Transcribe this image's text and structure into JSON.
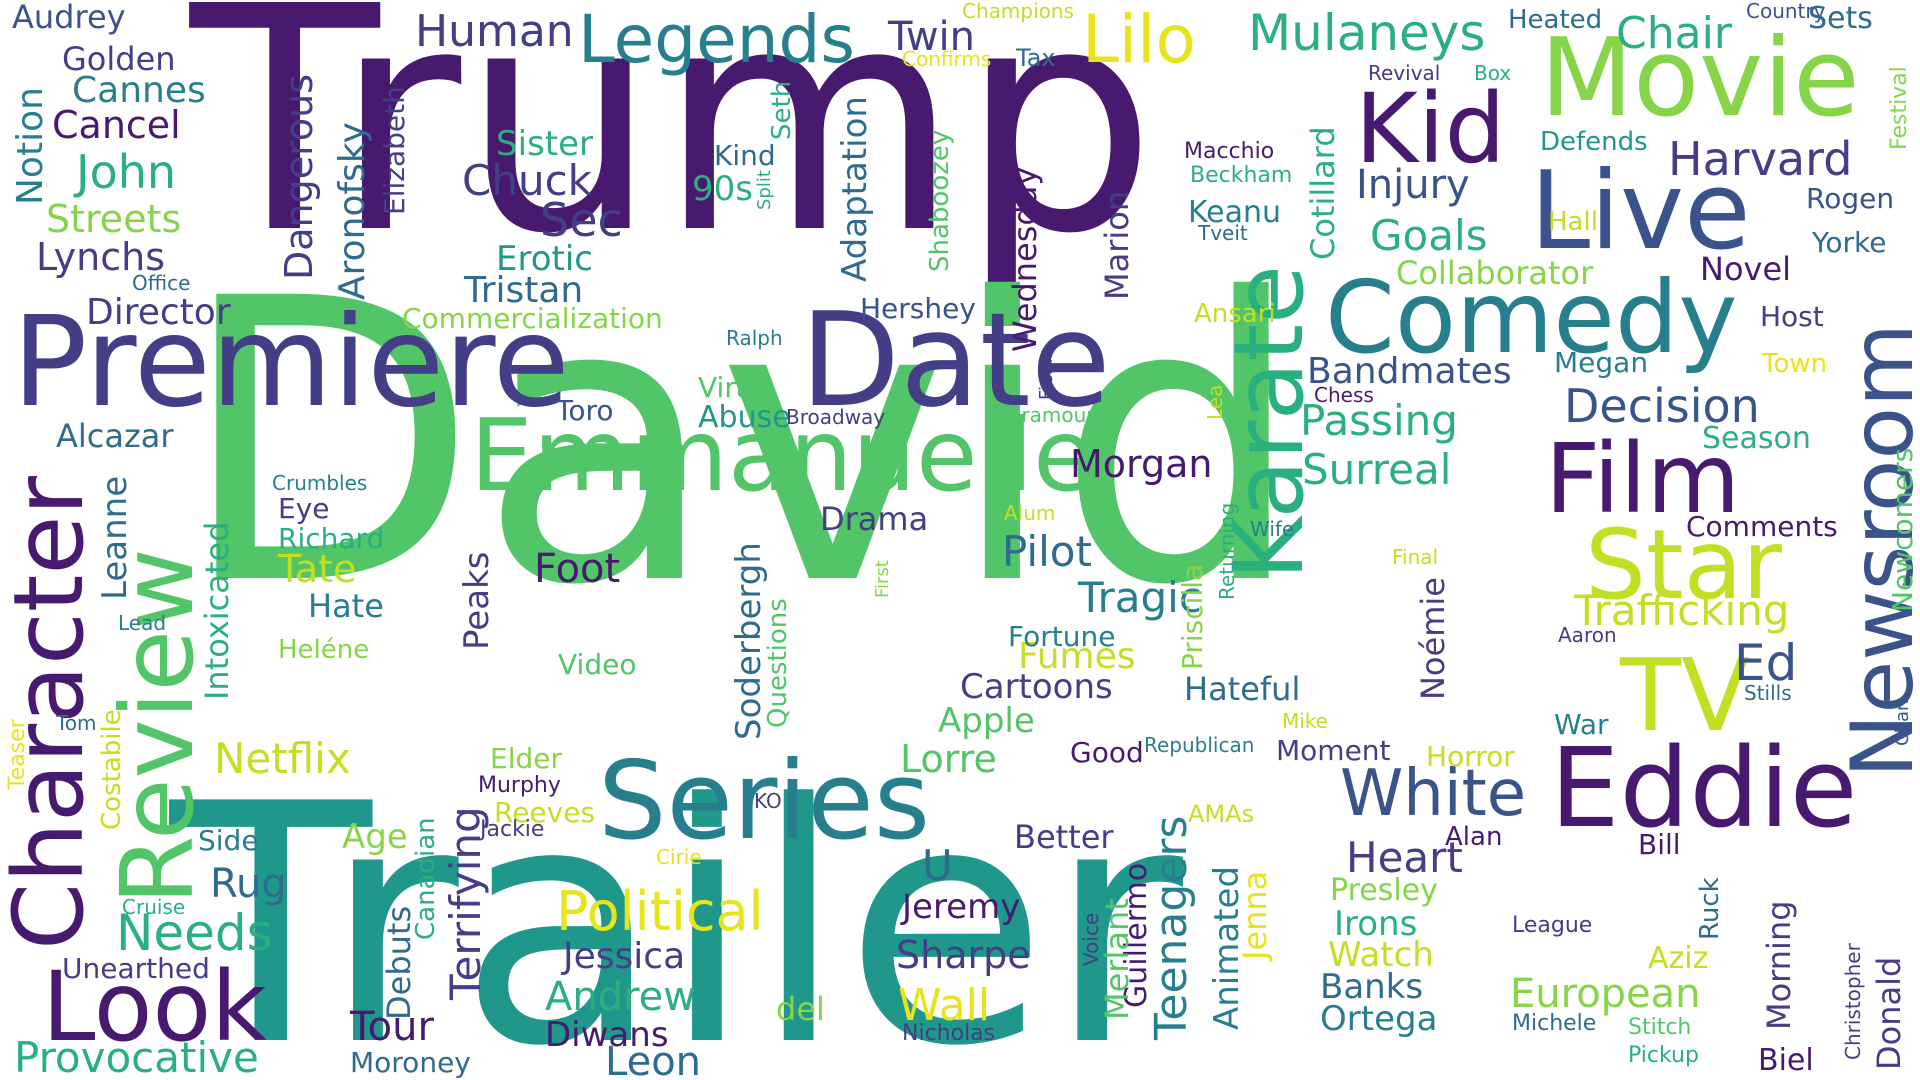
{
  "palette": {
    "dark_purple": "#471a6f",
    "indigo": "#433e85",
    "slate_blue": "#3a538b",
    "steel_blue": "#2f6b8e",
    "teal_blue": "#277f8e",
    "teal": "#1f978b",
    "green_teal": "#2ab07f",
    "green": "#52c569",
    "light_green": "#86d549",
    "yellow_green": "#c2df23",
    "yellow": "#e7e419"
  },
  "words": [
    {
      "text": "Trump",
      "color": "#471a6f"
    },
    {
      "text": "David",
      "color": "#52c569"
    },
    {
      "text": "Trailer",
      "color": "#1f978b"
    },
    {
      "text": "Premiere",
      "color": "#433e85"
    },
    {
      "text": "Date",
      "color": "#433e85"
    },
    {
      "text": "Comedy",
      "color": "#277f8e"
    },
    {
      "text": "Movie",
      "color": "#86d549"
    },
    {
      "text": "Live",
      "color": "#3a538b"
    },
    {
      "text": "Kid",
      "color": "#471a6f"
    },
    {
      "text": "Karate",
      "color": "#2ab07f"
    },
    {
      "text": "Emmanuelle",
      "color": "#52c569"
    },
    {
      "text": "Film",
      "color": "#471a6f"
    },
    {
      "text": "Star",
      "color": "#c2df23"
    },
    {
      "text": "TV",
      "color": "#c2df23"
    },
    {
      "text": "Newsroom",
      "color": "#3a538b"
    },
    {
      "text": "Eddie",
      "color": "#471a6f"
    },
    {
      "text": "Series",
      "color": "#277f8e"
    },
    {
      "text": "Review",
      "color": "#52c569"
    },
    {
      "text": "Character",
      "color": "#471a6f"
    },
    {
      "text": "Look",
      "color": "#471a6f"
    },
    {
      "text": "Legends",
      "color": "#277f8e"
    },
    {
      "text": "Lilo",
      "color": "#e7e419"
    },
    {
      "text": "Mulaneys",
      "color": "#2ab07f"
    },
    {
      "text": "Chair",
      "color": "#2ab07f"
    },
    {
      "text": "Human",
      "color": "#433e85"
    },
    {
      "text": "Twin",
      "color": "#433e85"
    },
    {
      "text": "Harvard",
      "color": "#433e85"
    },
    {
      "text": "White",
      "color": "#3a538b"
    },
    {
      "text": "Political",
      "color": "#e7e419"
    },
    {
      "text": "Decision",
      "color": "#3a538b"
    },
    {
      "text": "Trafficking",
      "color": "#c2df23"
    },
    {
      "text": "Provocative",
      "color": "#2ab07f"
    },
    {
      "text": "European",
      "color": "#86d549"
    },
    {
      "text": "Needs",
      "color": "#2ab07f"
    },
    {
      "text": "Andrew",
      "color": "#2ab07f"
    },
    {
      "text": "Passing",
      "color": "#2ab07f"
    },
    {
      "text": "Surreal",
      "color": "#2ab07f"
    },
    {
      "text": "Goals",
      "color": "#2ab07f"
    },
    {
      "text": "Heart",
      "color": "#433e85"
    },
    {
      "text": "Morgan",
      "color": "#471a6f"
    },
    {
      "text": "Tragic",
      "color": "#277f8e"
    },
    {
      "text": "Pilot",
      "color": "#2f6b8e"
    },
    {
      "text": "Bandmates",
      "color": "#3a538b"
    },
    {
      "text": "Injury",
      "color": "#3a538b"
    },
    {
      "text": "Leon",
      "color": "#2f6b8e"
    },
    {
      "text": "Jessica",
      "color": "#433e85"
    },
    {
      "text": "Sharpe",
      "color": "#433e85"
    },
    {
      "text": "Jeremy",
      "color": "#471a6f"
    },
    {
      "text": "Ortega",
      "color": "#277f8e"
    },
    {
      "text": "Banks",
      "color": "#2f6b8e"
    },
    {
      "text": "Irons",
      "color": "#2ab07f"
    },
    {
      "text": "Watch",
      "color": "#c2df23"
    },
    {
      "text": "Presley",
      "color": "#86d549"
    },
    {
      "text": "Alan",
      "color": "#471a6f"
    },
    {
      "text": "Diwans",
      "color": "#471a6f"
    },
    {
      "text": "Tour",
      "color": "#471a6f"
    },
    {
      "text": "Moroney",
      "color": "#2f6b8e"
    },
    {
      "text": "Lynchs",
      "color": "#433e85"
    },
    {
      "text": "Streets",
      "color": "#86d549"
    },
    {
      "text": "John",
      "color": "#2ab07f"
    },
    {
      "text": "Cancel",
      "color": "#471a6f"
    },
    {
      "text": "Cannes",
      "color": "#277f8e"
    },
    {
      "text": "Golden",
      "color": "#433e85"
    },
    {
      "text": "Audrey",
      "color": "#3a538b"
    },
    {
      "text": "Notion",
      "color": "#277f8e"
    },
    {
      "text": "Office",
      "color": "#2f6b8e"
    },
    {
      "text": "Director",
      "color": "#433e85"
    },
    {
      "text": "Alcazar",
      "color": "#2f6b8e"
    },
    {
      "text": "Leanne",
      "color": "#2f6b8e"
    },
    {
      "text": "Intoxicated",
      "color": "#2ab07f"
    },
    {
      "text": "Tate",
      "color": "#c2df23"
    },
    {
      "text": "Hate",
      "color": "#277f8e"
    },
    {
      "text": "Richard",
      "color": "#2ab07f"
    },
    {
      "text": "Eye",
      "color": "#433e85"
    },
    {
      "text": "Crumbles",
      "color": "#277f8e"
    },
    {
      "text": "Heléne",
      "color": "#86d549"
    },
    {
      "text": "Netflix",
      "color": "#c2df23"
    },
    {
      "text": "Age",
      "color": "#86d549"
    },
    {
      "text": "Side",
      "color": "#277f8e"
    },
    {
      "text": "Rug",
      "color": "#2f6b8e"
    },
    {
      "text": "Unearthed",
      "color": "#433e85"
    },
    {
      "text": "Cruise",
      "color": "#2ab07f"
    },
    {
      "text": "Costabile",
      "color": "#c2df23"
    },
    {
      "text": "Teaser",
      "color": "#e7e419"
    },
    {
      "text": "Tom",
      "color": "#2f6b8e"
    },
    {
      "text": "Lead",
      "color": "#277f8e"
    },
    {
      "text": "Debuts",
      "color": "#2f6b8e"
    },
    {
      "text": "Canadian",
      "color": "#2ab07f"
    },
    {
      "text": "Terrifying",
      "color": "#433e85"
    },
    {
      "text": "Peaks",
      "color": "#433e85"
    },
    {
      "text": "Dangerous",
      "color": "#433e85"
    },
    {
      "text": "Aronofsky",
      "color": "#2f6b8e"
    },
    {
      "text": "Elizabeth",
      "color": "#433e85"
    },
    {
      "text": "Chuck",
      "color": "#433e85"
    },
    {
      "text": "Sister",
      "color": "#2ab07f"
    },
    {
      "text": "Sec",
      "color": "#433e85"
    },
    {
      "text": "Erotic",
      "color": "#1f978b"
    },
    {
      "text": "Tristan",
      "color": "#2f6b8e"
    },
    {
      "text": "Commercialization",
      "color": "#86d549"
    },
    {
      "text": "Kind",
      "color": "#2f6b8e"
    },
    {
      "text": "90s",
      "color": "#2ab07f"
    },
    {
      "text": "Split",
      "color": "#2ab07f"
    },
    {
      "text": "Seth",
      "color": "#2ab07f"
    },
    {
      "text": "Adaptation",
      "color": "#2f6b8e"
    },
    {
      "text": "Shaboozey",
      "color": "#52c569"
    },
    {
      "text": "Wednesday",
      "color": "#471a6f"
    },
    {
      "text": "Marion",
      "color": "#433e85"
    },
    {
      "text": "Hershey",
      "color": "#3a538b"
    },
    {
      "text": "Ralph",
      "color": "#277f8e"
    },
    {
      "text": "Toro",
      "color": "#3a538b"
    },
    {
      "text": "Viral",
      "color": "#52c569"
    },
    {
      "text": "Abuse",
      "color": "#1f978b"
    },
    {
      "text": "Broadway",
      "color": "#433e85"
    },
    {
      "text": "Paramount",
      "color": "#52c569"
    },
    {
      "text": "Fields",
      "color": "#433e85"
    },
    {
      "text": "Drama",
      "color": "#433e85"
    },
    {
      "text": "Foot",
      "color": "#471a6f"
    },
    {
      "text": "Soderbergh",
      "color": "#2f6b8e"
    },
    {
      "text": "Questions",
      "color": "#52c569"
    },
    {
      "text": "Video",
      "color": "#52c569"
    },
    {
      "text": "First",
      "color": "#86d549"
    },
    {
      "text": "Fumes",
      "color": "#c2df23"
    },
    {
      "text": "Fortune",
      "color": "#277f8e"
    },
    {
      "text": "Cartoons",
      "color": "#433e85"
    },
    {
      "text": "Apple",
      "color": "#52c569"
    },
    {
      "text": "Lorre",
      "color": "#52c569"
    },
    {
      "text": "Elder",
      "color": "#86d549"
    },
    {
      "text": "Murphy",
      "color": "#471a6f"
    },
    {
      "text": "Reeves",
      "color": "#c2df23"
    },
    {
      "text": "KO",
      "color": "#433e85"
    },
    {
      "text": "Jackie",
      "color": "#433e85"
    },
    {
      "text": "Cirie",
      "color": "#e7e419"
    },
    {
      "text": "U",
      "color": "#2f6b8e"
    },
    {
      "text": "Better",
      "color": "#433e85"
    },
    {
      "text": "Wall",
      "color": "#e7e419"
    },
    {
      "text": "del",
      "color": "#86d549"
    },
    {
      "text": "Nicholas",
      "color": "#433e85"
    },
    {
      "text": "Good",
      "color": "#471a6f"
    },
    {
      "text": "Republican",
      "color": "#277f8e"
    },
    {
      "text": "Moment",
      "color": "#433e85"
    },
    {
      "text": "Horror",
      "color": "#c2df23"
    },
    {
      "text": "AMAs",
      "color": "#c2df23"
    },
    {
      "text": "Animated",
      "color": "#277f8e"
    },
    {
      "text": "Jenna",
      "color": "#e7e419"
    },
    {
      "text": "Teenagers",
      "color": "#277f8e"
    },
    {
      "text": "Guillermo",
      "color": "#471a6f"
    },
    {
      "text": "Merlant",
      "color": "#52c569"
    },
    {
      "text": "Voice",
      "color": "#433e85"
    },
    {
      "text": "Hateful",
      "color": "#2f6b8e"
    },
    {
      "text": "Noémie",
      "color": "#433e85"
    },
    {
      "text": "Priscilla",
      "color": "#86d549"
    },
    {
      "text": "Returning",
      "color": "#2ab07f"
    },
    {
      "text": "Wife",
      "color": "#277f8e"
    },
    {
      "text": "Alum",
      "color": "#c2df23"
    },
    {
      "text": "Lea",
      "color": "#c2df23"
    },
    {
      "text": "Chess",
      "color": "#471a6f"
    },
    {
      "text": "Megan",
      "color": "#277f8e"
    },
    {
      "text": "Macchio",
      "color": "#471a6f"
    },
    {
      "text": "Beckham",
      "color": "#2ab07f"
    },
    {
      "text": "Keanu",
      "color": "#277f8e"
    },
    {
      "text": "Tveit",
      "color": "#2f6b8e"
    },
    {
      "text": "Cotillard",
      "color": "#2ab07f"
    },
    {
      "text": "Collaborator",
      "color": "#86d549"
    },
    {
      "text": "Ansari",
      "color": "#c2df23"
    },
    {
      "text": "Revival",
      "color": "#433e85"
    },
    {
      "text": "Box",
      "color": "#2ab07f"
    },
    {
      "text": "Champions",
      "color": "#c2df23"
    },
    {
      "text": "Confirms",
      "color": "#e7e419"
    },
    {
      "text": "Tax",
      "color": "#2f6b8e"
    },
    {
      "text": "Heated",
      "color": "#2f6b8e"
    },
    {
      "text": "Country",
      "color": "#3a538b"
    },
    {
      "text": "Sets",
      "color": "#2f6b8e"
    },
    {
      "text": "Festival",
      "color": "#86d549"
    },
    {
      "text": "Defends",
      "color": "#1f978b"
    },
    {
      "text": "Hall",
      "color": "#c2df23"
    },
    {
      "text": "Rogen",
      "color": "#3a538b"
    },
    {
      "text": "Yorke",
      "color": "#2f6b8e"
    },
    {
      "text": "Novel",
      "color": "#471a6f"
    },
    {
      "text": "Host",
      "color": "#433e85"
    },
    {
      "text": "Town",
      "color": "#e7e419"
    },
    {
      "text": "Season",
      "color": "#2ab07f"
    },
    {
      "text": "Comments",
      "color": "#471a6f"
    },
    {
      "text": "Newcomers",
      "color": "#52c569"
    },
    {
      "text": "Final",
      "color": "#c2df23"
    },
    {
      "text": "Ed",
      "color": "#3a538b"
    },
    {
      "text": "Aaron",
      "color": "#433e85"
    },
    {
      "text": "Stills",
      "color": "#2f6b8e"
    },
    {
      "text": "Chan",
      "color": "#3a538b"
    },
    {
      "text": "Mike",
      "color": "#c2df23"
    },
    {
      "text": "War",
      "color": "#277f8e"
    },
    {
      "text": "Bill",
      "color": "#471a6f"
    },
    {
      "text": "Ruck",
      "color": "#2f6b8e"
    },
    {
      "text": "League",
      "color": "#433e85"
    },
    {
      "text": "Aziz",
      "color": "#c2df23"
    },
    {
      "text": "Christopher",
      "color": "#433e85"
    },
    {
      "text": "Morning",
      "color": "#433e85"
    },
    {
      "text": "Donald",
      "color": "#433e85"
    },
    {
      "text": "Michele",
      "color": "#2f6b8e"
    },
    {
      "text": "Stitch",
      "color": "#52c569"
    },
    {
      "text": "Pickup",
      "color": "#2ab07f"
    },
    {
      "text": "Biel",
      "color": "#471a6f"
    }
  ]
}
